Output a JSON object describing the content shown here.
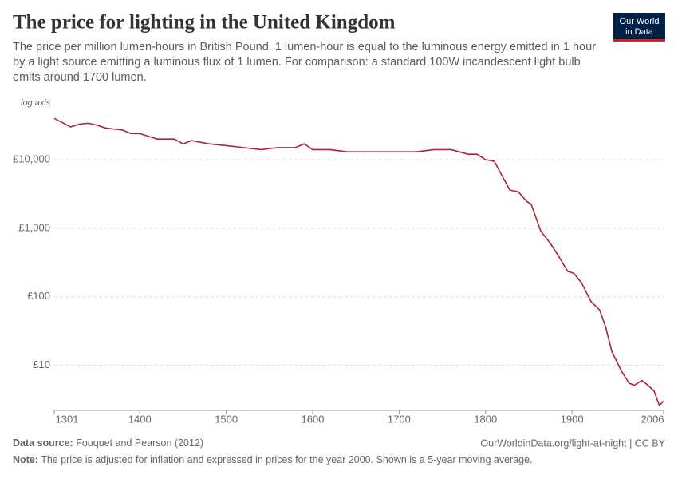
{
  "chart_data": {
    "type": "line",
    "title": "The price for lighting in the United Kingdom",
    "subtitle": "The price per million lumen-hours in British Pound. 1 lumen-hour is equal to the luminous energy emitted in 1 hour by a light source emitting a luminous flux of 1 lumen. For comparison: a standard 100W incandescent light bulb emits around 1700 lumen.",
    "axis_note": "log axis",
    "logo": [
      "Our World",
      "in Data"
    ],
    "source_label": "Data source:",
    "source": "Fouquet and Pearson (2012)",
    "url": "OurWorldinData.org/light-at-night | CC BY",
    "note_label": "Note:",
    "note": "The price is adjusted for inflation and expressed in prices for the year 2000. Shown is a 5-year moving average.",
    "log_y": true,
    "grid": true,
    "color": "#b0203a",
    "xlim": [
      1301,
      2006
    ],
    "xticks": [
      1301,
      1400,
      1500,
      1600,
      1700,
      1800,
      1900,
      2006
    ],
    "ylim": [
      2.2,
      50000
    ],
    "yticks": [
      {
        "value": 10,
        "label": "£10"
      },
      {
        "value": 100,
        "label": "£100"
      },
      {
        "value": 1000,
        "label": "£1,000"
      },
      {
        "value": 10000,
        "label": "£10,000"
      }
    ],
    "x": [
      1301,
      1310,
      1320,
      1330,
      1340,
      1350,
      1360,
      1370,
      1380,
      1390,
      1400,
      1420,
      1440,
      1450,
      1460,
      1480,
      1500,
      1520,
      1540,
      1560,
      1580,
      1590,
      1600,
      1620,
      1640,
      1660,
      1680,
      1700,
      1720,
      1740,
      1760,
      1780,
      1790,
      1800,
      1810,
      1828,
      1838,
      1847,
      1853,
      1864,
      1875,
      1884,
      1895,
      1902,
      1911,
      1922,
      1932,
      1939,
      1946,
      1957,
      1966,
      1972,
      1981,
      1988,
      1995,
      2001,
      2006
    ],
    "values": [
      40000,
      35000,
      30000,
      33000,
      34000,
      32000,
      29000,
      28000,
      27000,
      24000,
      24000,
      20000,
      20000,
      17000,
      19000,
      17000,
      16000,
      15000,
      14000,
      15000,
      15000,
      17000,
      14000,
      14000,
      13000,
      13000,
      13000,
      13000,
      13000,
      14000,
      14000,
      12000,
      12000,
      10000,
      9500,
      3600,
      3400,
      2500,
      2200,
      900,
      600,
      400,
      235,
      220,
      160,
      85,
      64,
      36,
      16,
      8.3,
      5.5,
      5.1,
      6,
      5.1,
      4.2,
      2.6,
      3
    ]
  }
}
